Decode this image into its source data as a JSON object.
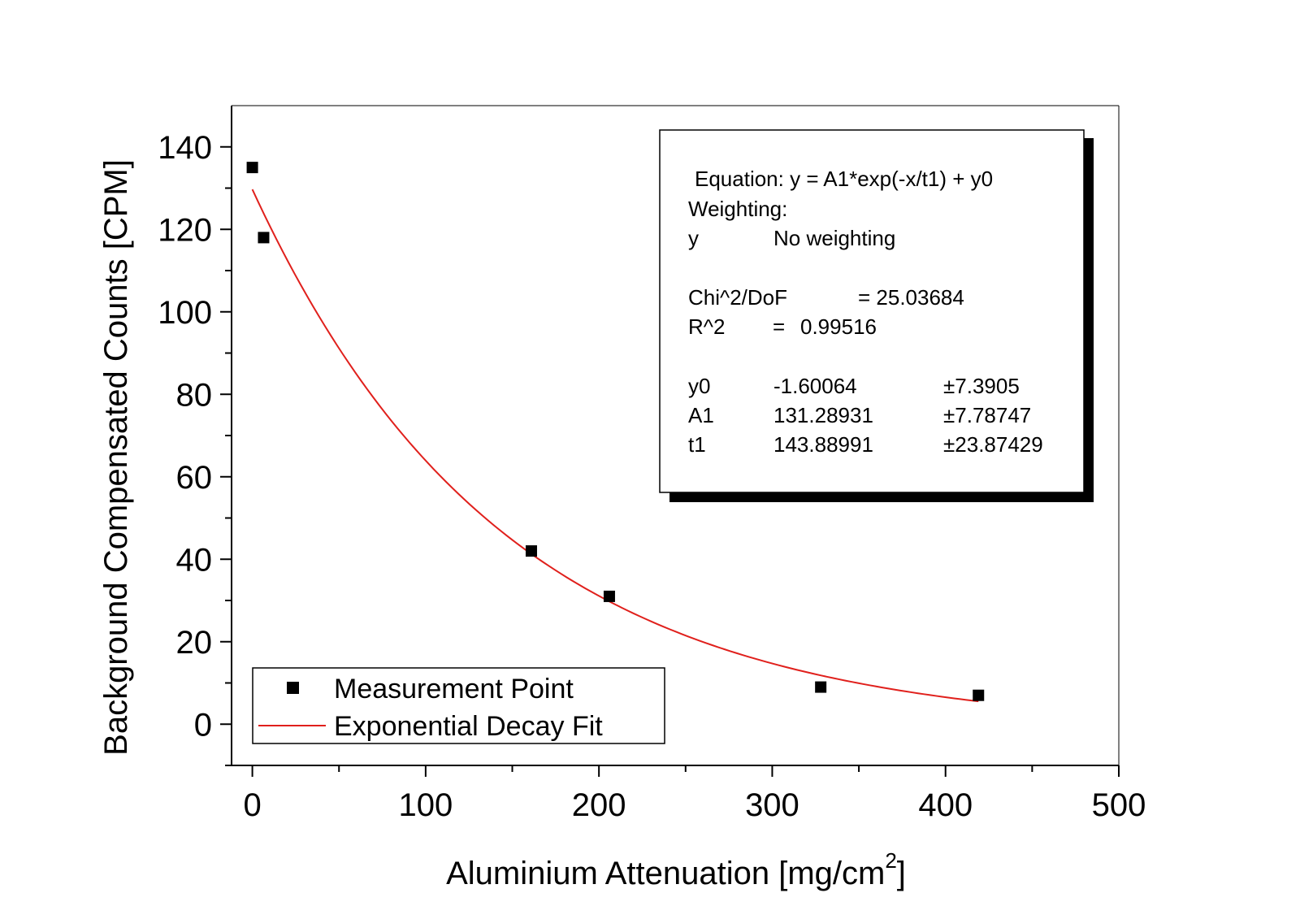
{
  "chart_data": {
    "type": "scatter",
    "x_axis": {
      "label_main": "Aluminium Attenuation [mg/cm",
      "label_superscript": "2",
      "label_close": "]",
      "range": [
        -12,
        500
      ],
      "major_ticks": [
        0,
        100,
        200,
        300,
        400,
        500
      ],
      "minor_ticks": [
        50,
        150,
        250,
        350,
        450
      ],
      "tick_labels": [
        "0",
        "100",
        "200",
        "300",
        "400",
        "500"
      ]
    },
    "y_axis": {
      "label": "Background Compensated Counts [CPM]",
      "range": [
        -10,
        150
      ],
      "major_ticks": [
        0,
        20,
        40,
        60,
        80,
        100,
        120,
        140
      ],
      "minor_ticks": [
        -10,
        10,
        30,
        50,
        70,
        90,
        110,
        130
      ],
      "tick_labels": [
        "0",
        "20",
        "40",
        "60",
        "80",
        "100",
        "120",
        "140"
      ]
    },
    "grid": false,
    "series": [
      {
        "name": "Measurement Point",
        "type": "scatter",
        "marker": "square",
        "color": "#000000",
        "x": [
          0,
          6.5,
          161,
          206,
          328,
          419
        ],
        "y": [
          135,
          118,
          42,
          31,
          9,
          7
        ]
      },
      {
        "name": "Exponential Decay Fit",
        "type": "line",
        "color": "#e0201c",
        "model": {
          "y0": -1.60064,
          "A1": 131.28931,
          "t1": 143.88991
        },
        "x_range": [
          0,
          419
        ]
      }
    ],
    "legend": {
      "placement": "bottom-left",
      "entries": [
        "Measurement Point",
        "Exponential Decay Fit"
      ]
    },
    "stats_box": {
      "placement": "top-right",
      "equation": "Equation: y = A1*exp(-x/t1) + y0",
      "weighting_label": "Weighting:",
      "weighting_var": "y",
      "weighting_value": "No weighting",
      "chi_label": "Chi^2/DoF",
      "chi_value": "= 25.03684",
      "r2_label": "R^2",
      "r2_eq": "=",
      "r2_value": "0.99516",
      "params": [
        {
          "name": "y0",
          "value": "-1.60064",
          "error": "±7.3905"
        },
        {
          "name": "A1",
          "value": "131.28931",
          "error": "±7.78747"
        },
        {
          "name": "t1",
          "value": "143.88991",
          "error": "±23.87429"
        }
      ]
    }
  }
}
